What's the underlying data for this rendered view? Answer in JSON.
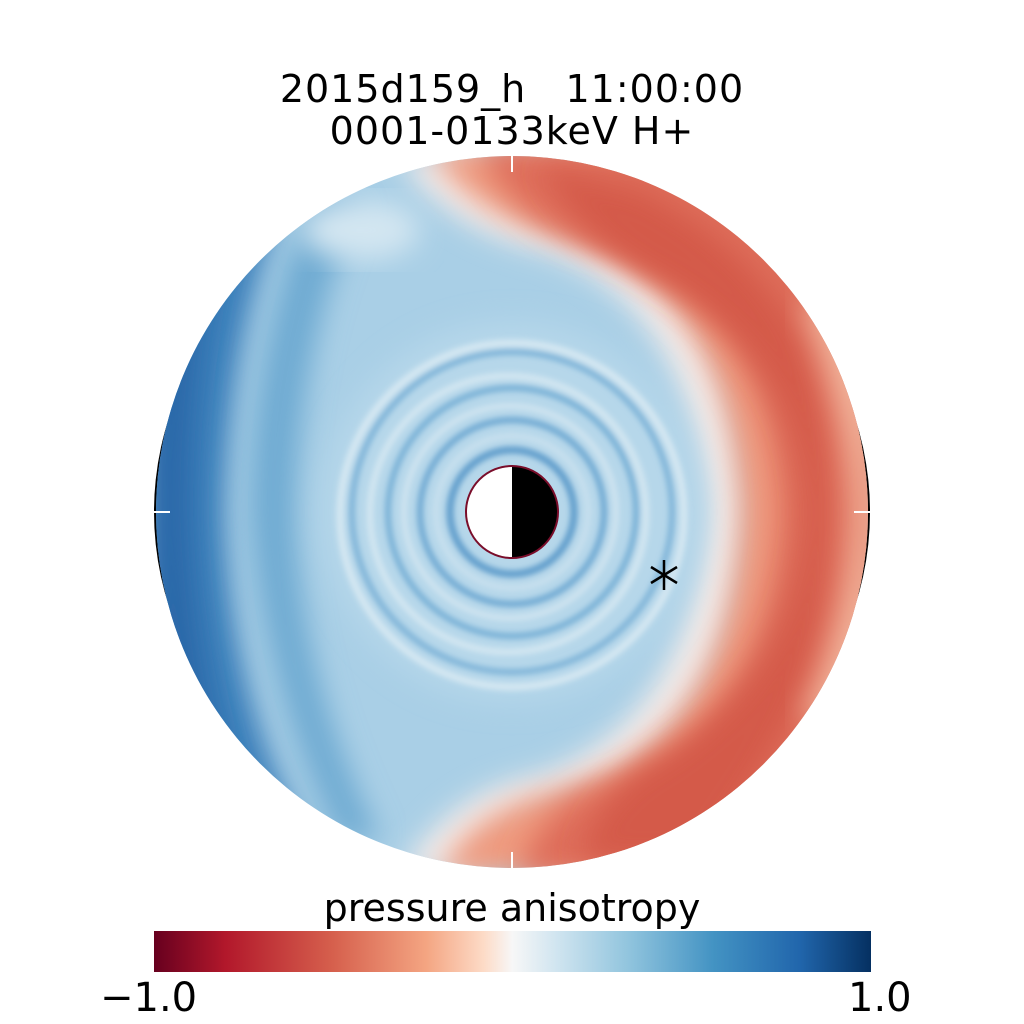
{
  "chart_data": {
    "type": "heatmap",
    "projection": "polar",
    "title": "2015d159_h   11:00:00",
    "subtitle": "0001-0133keV H+",
    "colorbar": {
      "label": "pressure anisotropy",
      "min_label": "−1.0",
      "max_label": "1.0",
      "range": [
        -1.0,
        1.0
      ],
      "colormap": "diverging red-white-blue",
      "low_color": "#67001f",
      "mid_color": "#f7f7f7",
      "high_color": "#053061"
    },
    "marker": {
      "symbol": "asterisk",
      "color": "#000000"
    },
    "central_body": {
      "day_side_color": "#ffffff",
      "night_side_color": "#000000",
      "outline_color": "#7a0d2a"
    }
  }
}
